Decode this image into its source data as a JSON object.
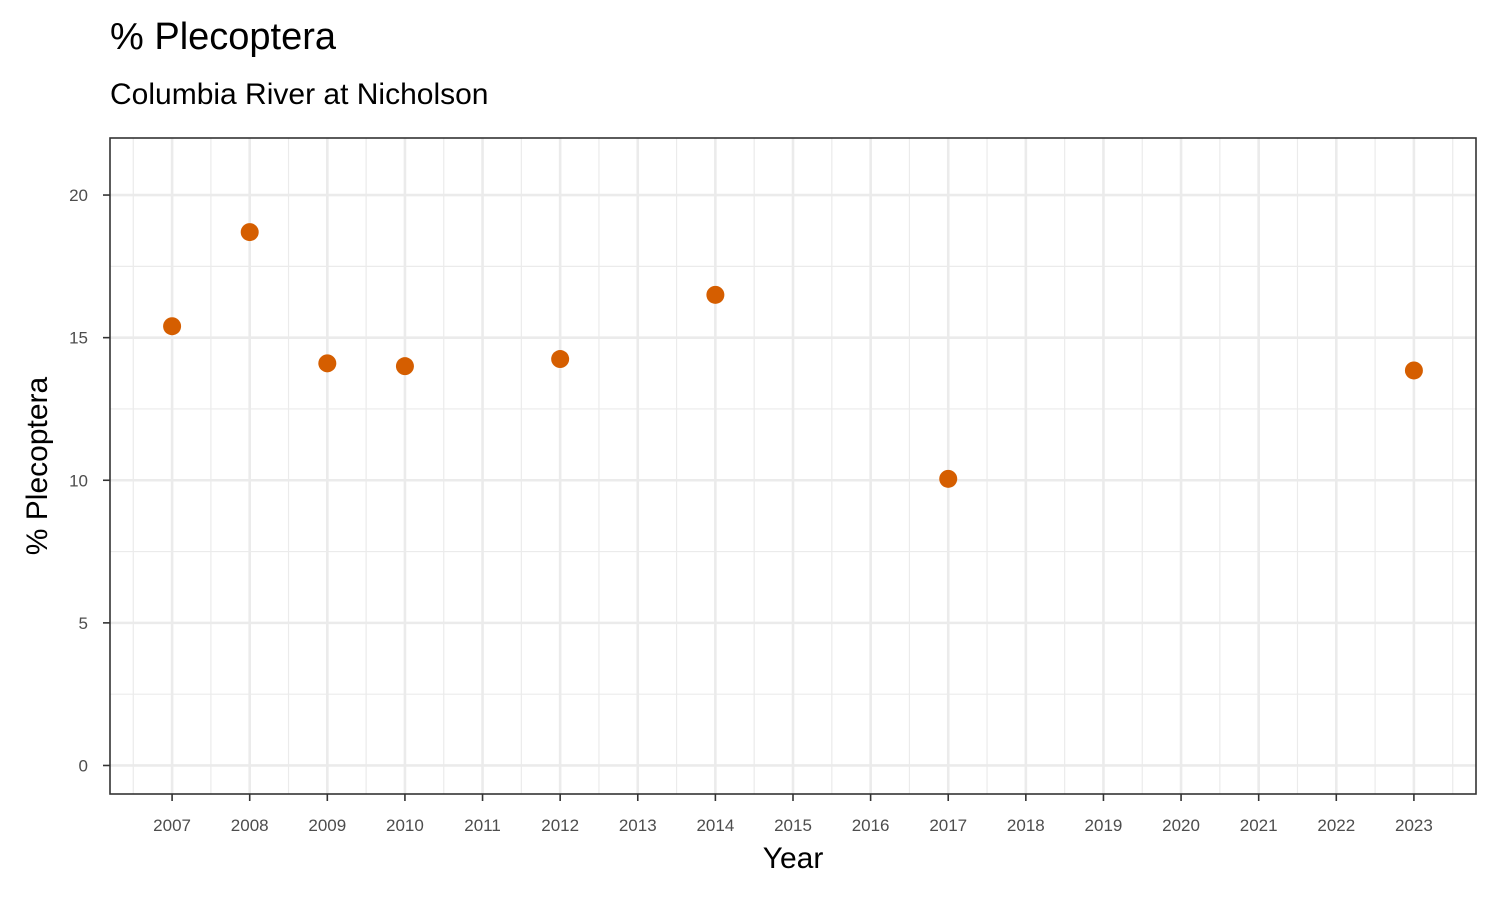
{
  "chart_data": {
    "type": "scatter",
    "title": "% Plecoptera",
    "subtitle": "Columbia River at Nicholson",
    "xlabel": "Year",
    "ylabel": "% Plecoptera",
    "x_ticks": [
      "2007",
      "2008",
      "2009",
      "2010",
      "2011",
      "2012",
      "2013",
      "2014",
      "2015",
      "2016",
      "2017",
      "2018",
      "2019",
      "2020",
      "2021",
      "2022",
      "2023"
    ],
    "y_ticks": [
      0,
      5,
      10,
      15,
      20
    ],
    "xlim": [
      2006.2,
      2023.8
    ],
    "ylim": [
      -1,
      22
    ],
    "grid": true,
    "point_color": "#D55E00",
    "points": [
      {
        "x": 2007,
        "y": 15.4
      },
      {
        "x": 2008,
        "y": 18.7
      },
      {
        "x": 2009,
        "y": 14.1
      },
      {
        "x": 2010,
        "y": 14.0
      },
      {
        "x": 2012,
        "y": 14.25
      },
      {
        "x": 2014,
        "y": 16.5
      },
      {
        "x": 2017,
        "y": 10.05
      },
      {
        "x": 2023,
        "y": 13.85
      }
    ]
  }
}
